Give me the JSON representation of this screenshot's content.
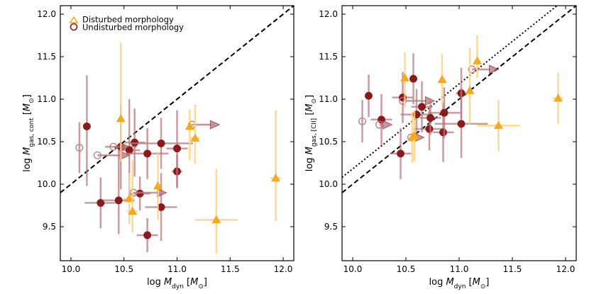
{
  "colors": {
    "disturbed": "#F4A91E",
    "undisturbed": "#8B1A1A",
    "undisturbed_err": "#B97A80",
    "disturbed_err": "#FFD27A"
  },
  "legend": {
    "disturbed": "Disturbed morphology",
    "undisturbed": "Undisturbed morphology"
  },
  "chart_data": [
    {
      "type": "scatter",
      "panel": "left",
      "xlabel": "log M_dyn [M_⊙]",
      "ylabel": "log M_gas,cont [M_⊙]",
      "xlim": [
        9.9,
        12.1
      ],
      "ylim": [
        9.1,
        12.1
      ],
      "xticks": [
        "10.0",
        "10.5",
        "11.0",
        "11.5",
        "12.0"
      ],
      "yticks": [
        "9.5",
        "10.0",
        "10.5",
        "11.0",
        "11.5",
        "12.0"
      ],
      "reference_lines": [
        {
          "style": "dashed",
          "relation": "y = x"
        }
      ],
      "series": [
        {
          "name": "Undisturbed morphology",
          "points": [
            {
              "x": 10.15,
              "y": 10.68,
              "xlo": 0.0,
              "xhi": 0.0,
              "ylo": 0.7,
              "yhi": 0.6,
              "xlimit": "none",
              "open": false
            },
            {
              "x": 10.28,
              "y": 9.78,
              "xlo": 0.15,
              "xhi": 0.15,
              "ylo": 0.3,
              "yhi": 0.3,
              "xlimit": "none",
              "open": false
            },
            {
              "x": 10.45,
              "y": 9.81,
              "xlo": 0.15,
              "xhi": 0.15,
              "ylo": 0.4,
              "yhi": 0.6,
              "xlimit": "none",
              "open": false
            },
            {
              "x": 10.47,
              "y": 10.44,
              "xlo": 0.15,
              "xhi": 0.15,
              "ylo": 0.5,
              "yhi": 0.5,
              "xlimit": "none",
              "open": false
            },
            {
              "x": 10.55,
              "y": 10.4,
              "xlo": 0.1,
              "xhi": 0.1,
              "ylo": 0.6,
              "yhi": 0.6,
              "xlimit": "none",
              "open": false
            },
            {
              "x": 10.6,
              "y": 10.49,
              "xlo": 0.1,
              "xhi": 0.1,
              "ylo": 0.4,
              "yhi": 0.4,
              "xlimit": "none",
              "open": false
            },
            {
              "x": 10.65,
              "y": 9.89,
              "xlo": 0.1,
              "xhi": 0.1,
              "ylo": 0.2,
              "yhi": 0.2,
              "xlimit": "none",
              "open": false
            },
            {
              "x": 10.72,
              "y": 10.36,
              "xlo": 0.2,
              "xhi": 0.2,
              "ylo": 0.3,
              "yhi": 0.3,
              "xlimit": "none",
              "open": false
            },
            {
              "x": 10.72,
              "y": 9.4,
              "xlo": 0.1,
              "xhi": 0.1,
              "ylo": 0.2,
              "yhi": 0.2,
              "xlimit": "none",
              "open": false
            },
            {
              "x": 10.85,
              "y": 10.48,
              "xlo": 0.3,
              "xhi": 0.3,
              "ylo": 0.3,
              "yhi": 0.3,
              "xlimit": "none",
              "open": false
            },
            {
              "x": 10.85,
              "y": 9.73,
              "xlo": 0.15,
              "xhi": 0.15,
              "ylo": 0.4,
              "yhi": 0.4,
              "xlimit": "none",
              "open": false
            },
            {
              "x": 11.0,
              "y": 10.15,
              "xlo": 0.05,
              "xhi": 0.05,
              "ylo": 0.2,
              "yhi": 0.2,
              "xlimit": "none",
              "open": false
            },
            {
              "x": 11.0,
              "y": 10.42,
              "xlo": 0.1,
              "xhi": 0.1,
              "ylo": 0.45,
              "yhi": 0.45,
              "xlimit": "none",
              "open": false
            },
            {
              "x": 10.08,
              "y": 10.43,
              "xlo": 0.0,
              "xhi": 0.0,
              "ylo": 0.3,
              "yhi": 0.3,
              "xlimit": "none",
              "open": true
            },
            {
              "x": 10.25,
              "y": 10.34,
              "xlo": 0.0,
              "xhi": 0.0,
              "ylo": 0.0,
              "yhi": 0.0,
              "xlimit": "lower",
              "arrow_to": 10.55,
              "open": true
            },
            {
              "x": 10.4,
              "y": 10.44,
              "xlo": 0.0,
              "xhi": 0.0,
              "ylo": 0.0,
              "yhi": 0.0,
              "xlimit": "lower",
              "arrow_to": 10.55,
              "open": true
            },
            {
              "x": 10.59,
              "y": 9.9,
              "xlo": 0.0,
              "xhi": 0.0,
              "ylo": 0.0,
              "yhi": 0.0,
              "xlimit": "lower",
              "arrow_to": 10.9,
              "open": true
            },
            {
              "x": 11.14,
              "y": 10.7,
              "xlo": 0.0,
              "xhi": 0.0,
              "ylo": 0.0,
              "yhi": 0.0,
              "xlimit": "lower",
              "arrow_to": 11.4,
              "open": true
            }
          ]
        },
        {
          "name": "Disturbed morphology",
          "points": [
            {
              "x": 10.47,
              "y": 10.77,
              "xlo": 0.0,
              "xhi": 0.0,
              "ylo": 0.5,
              "yhi": 0.9,
              "xlimit": "none",
              "open": false
            },
            {
              "x": 10.55,
              "y": 9.83,
              "xlo": 0.05,
              "xhi": 0.05,
              "ylo": 0.3,
              "yhi": 0.3,
              "xlimit": "none",
              "open": false
            },
            {
              "x": 10.58,
              "y": 9.68,
              "xlo": 0.05,
              "xhi": 0.05,
              "ylo": 0.25,
              "yhi": 0.6,
              "xlimit": "none",
              "open": false
            },
            {
              "x": 10.82,
              "y": 9.98,
              "xlo": 0.0,
              "xhi": 0.0,
              "ylo": 0.4,
              "yhi": 0.4,
              "xlimit": "none",
              "open": false
            },
            {
              "x": 11.12,
              "y": 10.68,
              "xlo": 0.0,
              "xhi": 0.0,
              "ylo": 0.4,
              "yhi": 0.2,
              "xlimit": "none",
              "open": false
            },
            {
              "x": 11.17,
              "y": 10.54,
              "xlo": 0.05,
              "xhi": 0.05,
              "ylo": 0.3,
              "yhi": 0.4,
              "xlimit": "none",
              "open": false
            },
            {
              "x": 11.37,
              "y": 9.58,
              "xlo": 0.2,
              "xhi": 0.2,
              "ylo": 0.4,
              "yhi": 0.6,
              "xlimit": "none",
              "open": false
            },
            {
              "x": 11.93,
              "y": 10.07,
              "xlo": 0.05,
              "xhi": 0.05,
              "ylo": 0.5,
              "yhi": 0.8,
              "xlimit": "none",
              "open": false
            }
          ]
        }
      ]
    },
    {
      "type": "scatter",
      "panel": "right",
      "xlabel": "log M_dyn [M_⊙]",
      "ylabel": "log M_gas,[CII] [M_⊙]",
      "xlim": [
        9.9,
        12.1
      ],
      "ylim": [
        9.1,
        12.1
      ],
      "xticks": [
        "10.0",
        "10.5",
        "11.0",
        "11.5",
        "12.0"
      ],
      "yticks": [
        "9.5",
        "10.0",
        "10.5",
        "11.0",
        "11.5",
        "12.0"
      ],
      "reference_lines": [
        {
          "style": "dashed",
          "relation": "y = x"
        },
        {
          "style": "dotted",
          "relation": "y = x + 0.18"
        }
      ],
      "series": [
        {
          "name": "Undisturbed morphology",
          "points": [
            {
              "x": 10.15,
              "y": 11.04,
              "xlo": 0.0,
              "xhi": 0.0,
              "ylo": 0.25,
              "yhi": 0.25,
              "xlimit": "none",
              "open": false
            },
            {
              "x": 10.27,
              "y": 10.76,
              "xlo": 0.1,
              "xhi": 0.1,
              "ylo": 0.3,
              "yhi": 0.3,
              "xlimit": "none",
              "open": false
            },
            {
              "x": 10.45,
              "y": 10.36,
              "xlo": 0.1,
              "xhi": 0.1,
              "ylo": 0.3,
              "yhi": 0.3,
              "xlimit": "none",
              "open": false
            },
            {
              "x": 10.47,
              "y": 11.02,
              "xlo": 0.1,
              "xhi": 0.1,
              "ylo": 0.3,
              "yhi": 0.3,
              "xlimit": "none",
              "open": false
            },
            {
              "x": 10.57,
              "y": 11.24,
              "xlo": 0.0,
              "xhi": 0.0,
              "ylo": 0.3,
              "yhi": 0.3,
              "xlimit": "none",
              "open": false
            },
            {
              "x": 10.6,
              "y": 10.82,
              "xlo": 0.15,
              "xhi": 0.15,
              "ylo": 0.3,
              "yhi": 0.3,
              "xlimit": "none",
              "open": false
            },
            {
              "x": 10.65,
              "y": 10.91,
              "xlo": 0.1,
              "xhi": 0.1,
              "ylo": 0.3,
              "yhi": 0.3,
              "xlimit": "none",
              "open": false
            },
            {
              "x": 10.72,
              "y": 10.65,
              "xlo": 0.15,
              "xhi": 0.15,
              "ylo": 0.25,
              "yhi": 0.25,
              "xlimit": "none",
              "open": false
            },
            {
              "x": 10.73,
              "y": 10.78,
              "xlo": 0.1,
              "xhi": 0.1,
              "ylo": 0.2,
              "yhi": 0.2,
              "xlimit": "none",
              "open": false
            },
            {
              "x": 10.85,
              "y": 10.61,
              "xlo": 0.1,
              "xhi": 0.1,
              "ylo": 0.35,
              "yhi": 0.35,
              "xlimit": "none",
              "open": false
            },
            {
              "x": 10.86,
              "y": 10.84,
              "xlo": 0.15,
              "xhi": 0.15,
              "ylo": 0.3,
              "yhi": 0.3,
              "xlimit": "none",
              "open": false
            },
            {
              "x": 11.02,
              "y": 11.07,
              "xlo": 0.05,
              "xhi": 0.05,
              "ylo": 0.3,
              "yhi": 0.3,
              "xlimit": "none",
              "open": false
            },
            {
              "x": 11.02,
              "y": 10.71,
              "xlo": 0.25,
              "xhi": 0.25,
              "ylo": 0.4,
              "yhi": 0.4,
              "xlimit": "none",
              "open": false
            },
            {
              "x": 10.09,
              "y": 10.74,
              "xlo": 0.0,
              "xhi": 0.0,
              "ylo": 0.25,
              "yhi": 0.25,
              "xlimit": "none",
              "open": true
            },
            {
              "x": 10.25,
              "y": 10.7,
              "xlo": 0.0,
              "xhi": 0.0,
              "ylo": 0.0,
              "yhi": 0.0,
              "xlimit": "lower",
              "arrow_to": 10.37,
              "open": true
            },
            {
              "x": 10.47,
              "y": 10.98,
              "xlo": 0.0,
              "xhi": 0.0,
              "ylo": 0.0,
              "yhi": 0.0,
              "xlimit": "lower",
              "arrow_to": 10.77,
              "open": true
            },
            {
              "x": 10.55,
              "y": 10.55,
              "xlo": 0.0,
              "xhi": 0.0,
              "ylo": 0.0,
              "yhi": 0.0,
              "xlimit": "lower",
              "arrow_to": 10.67,
              "open": true
            },
            {
              "x": 11.12,
              "y": 11.35,
              "xlo": 0.0,
              "xhi": 0.0,
              "ylo": 0.0,
              "yhi": 0.0,
              "xlimit": "lower",
              "arrow_to": 11.37,
              "open": true
            }
          ]
        },
        {
          "name": "Disturbed morphology",
          "points": [
            {
              "x": 10.49,
              "y": 11.25,
              "xlo": 0.0,
              "xhi": 0.0,
              "ylo": 0.35,
              "yhi": 0.3,
              "xlimit": "none",
              "open": false
            },
            {
              "x": 10.56,
              "y": 10.55,
              "xlo": 0.0,
              "xhi": 0.0,
              "ylo": 0.3,
              "yhi": 0.3,
              "xlimit": "none",
              "open": false
            },
            {
              "x": 10.58,
              "y": 10.57,
              "xlo": 0.0,
              "xhi": 0.0,
              "ylo": 0.3,
              "yhi": 0.3,
              "xlimit": "none",
              "open": false
            },
            {
              "x": 10.84,
              "y": 11.23,
              "xlo": 0.0,
              "xhi": 0.0,
              "ylo": 0.3,
              "yhi": 0.3,
              "xlimit": "none",
              "open": false
            },
            {
              "x": 11.1,
              "y": 11.1,
              "xlo": 0.0,
              "xhi": 0.0,
              "ylo": 0.4,
              "yhi": 0.5,
              "xlimit": "none",
              "open": false
            },
            {
              "x": 11.17,
              "y": 11.45,
              "xlo": 0.0,
              "xhi": 0.0,
              "ylo": 0.2,
              "yhi": 0.3,
              "xlimit": "none",
              "open": false
            },
            {
              "x": 11.37,
              "y": 10.69,
              "xlo": 0.2,
              "xhi": 0.2,
              "ylo": 0.3,
              "yhi": 0.3,
              "xlimit": "none",
              "open": false
            },
            {
              "x": 11.93,
              "y": 11.01,
              "xlo": 0.05,
              "xhi": 0.05,
              "ylo": 0.3,
              "yhi": 0.3,
              "xlimit": "none",
              "open": false
            }
          ]
        }
      ]
    }
  ]
}
